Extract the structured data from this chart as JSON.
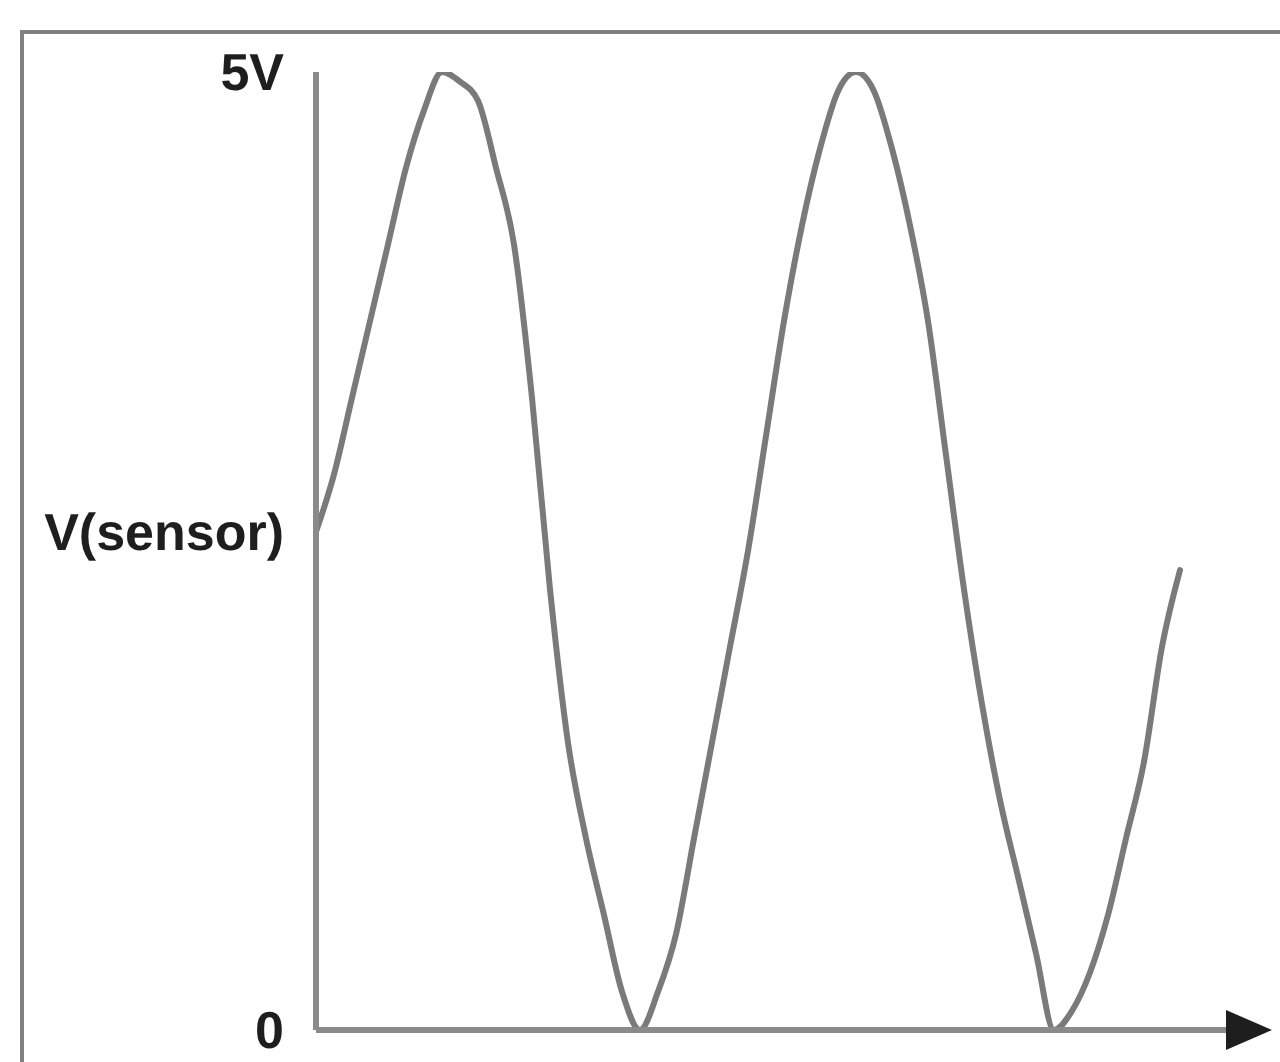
{
  "chart_data": {
    "type": "line",
    "categories": [
      null,
      null,
      null,
      null,
      null,
      null,
      null,
      null,
      null,
      null,
      null,
      null,
      null,
      null,
      null,
      null,
      null,
      null,
      null,
      null,
      null,
      null,
      null,
      null,
      null,
      null,
      null,
      null,
      null,
      null,
      null,
      null,
      null,
      null,
      null,
      null,
      null,
      null,
      null,
      null,
      null,
      null,
      null,
      null,
      null,
      null,
      null,
      null,
      null
    ],
    "series": [
      {
        "color": "#7a7a7a",
        "values": [
          2.6,
          2.9,
          3.3,
          3.7,
          4.1,
          4.5,
          4.8,
          5.0,
          4.95,
          4.85,
          4.5,
          4.1,
          3.3,
          2.3,
          1.5,
          1.0,
          0.6,
          0.2,
          0,
          0.2,
          0.5,
          1.0,
          1.5,
          2.0,
          2.5,
          3.1,
          3.7,
          4.2,
          4.6,
          4.9,
          5.0,
          4.9,
          4.6,
          4.2,
          3.7,
          3.0,
          2.3,
          1.7,
          1.2,
          0.8,
          0.4,
          0,
          0.1,
          0.3,
          0.6,
          1.0,
          1.4,
          2.0,
          2.4
        ]
      }
    ],
    "ylim": [
      0,
      5
    ],
    "yticks": [
      0,
      {
        "value": 2.6,
        "label": "V(sensor)"
      },
      {
        "value": 5,
        "label": "5V"
      }
    ],
    "tick_labels": "y"
  }
}
